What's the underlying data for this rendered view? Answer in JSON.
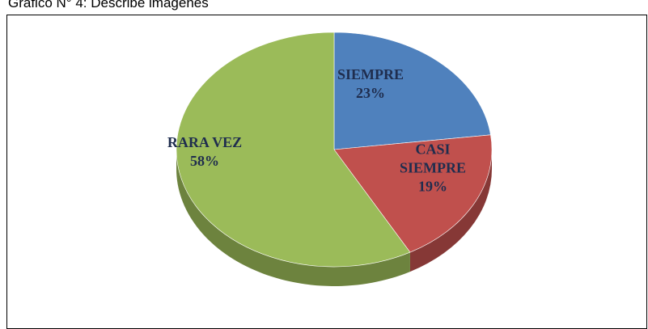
{
  "chart_data": {
    "type": "pie",
    "title": "Gráfico N° 4: Describe imágenes",
    "categories": [
      "SIEMPRE",
      "CASI SIEMPRE",
      "RARA VEZ"
    ],
    "values": [
      23,
      19,
      58
    ],
    "value_labels": [
      "23%",
      "19%",
      "58%"
    ],
    "colors": [
      "#4f81bd",
      "#c0504d",
      "#9bbb59"
    ]
  }
}
